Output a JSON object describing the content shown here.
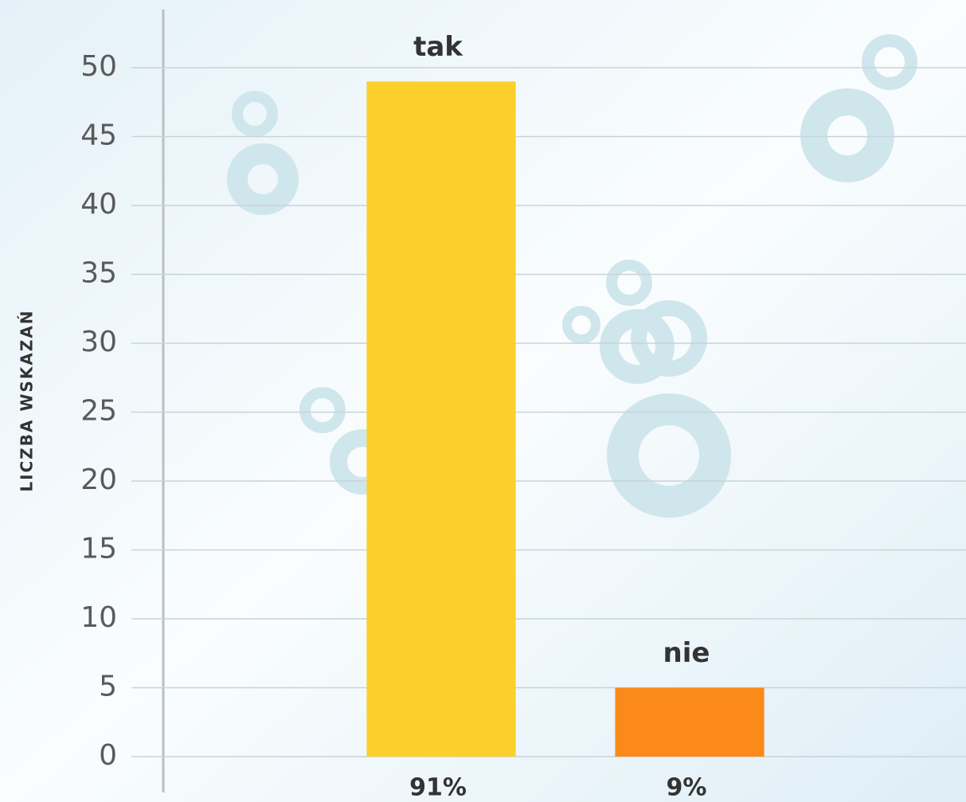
{
  "chart_data": {
    "type": "bar",
    "y_axis_label": "LICZBA WSKAZAŃ",
    "categories": [
      "tak",
      "nie"
    ],
    "values": [
      49,
      5
    ],
    "colors": [
      "#fcd02a",
      "#fb8a1a"
    ],
    "shares": [
      {
        "value": 91,
        "label": "91%"
      },
      {
        "value": 9,
        "label": "9%"
      }
    ],
    "ylim": [
      0,
      50
    ],
    "yticks": [
      0,
      5,
      10,
      15,
      20,
      25,
      30,
      35,
      40,
      45,
      50
    ],
    "grid": true
  }
}
